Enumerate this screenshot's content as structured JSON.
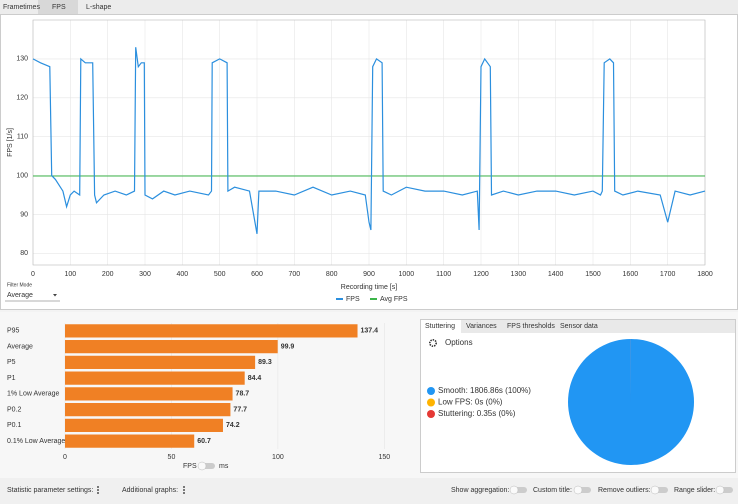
{
  "top_tabs": [
    "Frametimes",
    "FPS",
    "L-shape"
  ],
  "filter": {
    "label": "Filter Mode",
    "value": "Average"
  },
  "unit_toggle": {
    "left": "FPS",
    "right": "ms"
  },
  "side_tabs": [
    "Stuttering",
    "Variances",
    "FPS thresholds",
    "Sensor data"
  ],
  "options": "Options",
  "footer": {
    "left": [
      "Statistic parameter settings:",
      "Additional graphs:"
    ],
    "toggles": [
      "Show aggregation:",
      "Custom title:",
      "Remove outliers:",
      "Range slider:"
    ]
  },
  "chart_data": [
    {
      "type": "line",
      "x_label": "Recording time [s]",
      "y_label": "FPS [1/s]",
      "x": [
        0,
        20,
        45,
        50,
        60,
        80,
        90,
        100,
        110,
        125,
        128,
        140,
        160,
        165,
        170,
        190,
        220,
        250,
        272,
        275,
        282,
        290,
        298,
        300,
        320,
        350,
        380,
        420,
        470,
        478,
        480,
        500,
        520,
        522,
        540,
        580,
        600,
        605,
        650,
        700,
        750,
        800,
        850,
        890,
        900,
        905,
        910,
        920,
        935,
        938,
        960,
        1000,
        1050,
        1100,
        1150,
        1190,
        1195,
        1200,
        1210,
        1225,
        1228,
        1260,
        1300,
        1350,
        1400,
        1450,
        1500,
        1520,
        1525,
        1530,
        1545,
        1555,
        1558,
        1580,
        1620,
        1680,
        1700,
        1720,
        1760,
        1800
      ],
      "series": [
        {
          "name": "FPS",
          "color": "#2b8fde",
          "values": [
            130,
            129,
            128,
            100,
            99,
            96,
            92,
            95,
            96,
            95,
            130,
            129,
            129,
            95,
            93,
            95,
            96,
            95,
            96,
            133,
            128,
            129,
            129,
            95,
            94,
            96,
            95,
            96,
            95,
            96,
            129,
            130,
            129,
            96,
            97,
            96,
            85,
            96,
            96,
            95,
            97,
            95,
            96,
            95,
            88,
            86,
            128,
            130,
            129,
            96,
            95,
            97,
            96,
            96,
            95,
            96,
            86,
            128,
            130,
            128,
            95,
            96,
            95,
            96,
            96,
            95,
            96,
            95,
            96,
            129,
            130,
            129,
            96,
            95,
            96,
            95,
            88,
            96,
            95,
            96
          ]
        }
      ],
      "avg": {
        "name": "Avg FPS",
        "color": "#3cb54a",
        "value": 99.9
      },
      "xlim": [
        0,
        1800
      ],
      "xticks": [
        0,
        100,
        200,
        300,
        400,
        500,
        600,
        700,
        800,
        900,
        1000,
        1100,
        1200,
        1300,
        1400,
        1500,
        1600,
        1700,
        1800
      ],
      "ylim": [
        77,
        140
      ],
      "yticks": [
        80,
        90,
        100,
        110,
        120,
        130
      ],
      "grid": true
    },
    {
      "type": "hbar",
      "color": "#f08024",
      "categories": [
        "P95",
        "Average",
        "P5",
        "P1",
        "1% Low Average",
        "P0.2",
        "P0.1",
        "0.1% Low Average"
      ],
      "values": [
        137.4,
        99.9,
        89.3,
        84.4,
        78.7,
        77.7,
        74.2,
        60.7
      ],
      "xlim": [
        0,
        155
      ],
      "xticks": [
        0,
        50,
        100,
        150
      ],
      "grid": true
    },
    {
      "type": "pie",
      "series": [
        {
          "name": "Smooth",
          "color": "#2196f3"
        },
        {
          "name": "Low FPS",
          "color": "#ffb300"
        },
        {
          "name": "Stuttering",
          "color": "#e53935"
        }
      ],
      "values": [
        1806.86,
        0,
        0.35
      ],
      "value_labels": [
        "Smooth: 1806.86s (100%)",
        "Low FPS: 0s (0%)",
        "Stuttering: 0.35s (0%)"
      ]
    }
  ]
}
